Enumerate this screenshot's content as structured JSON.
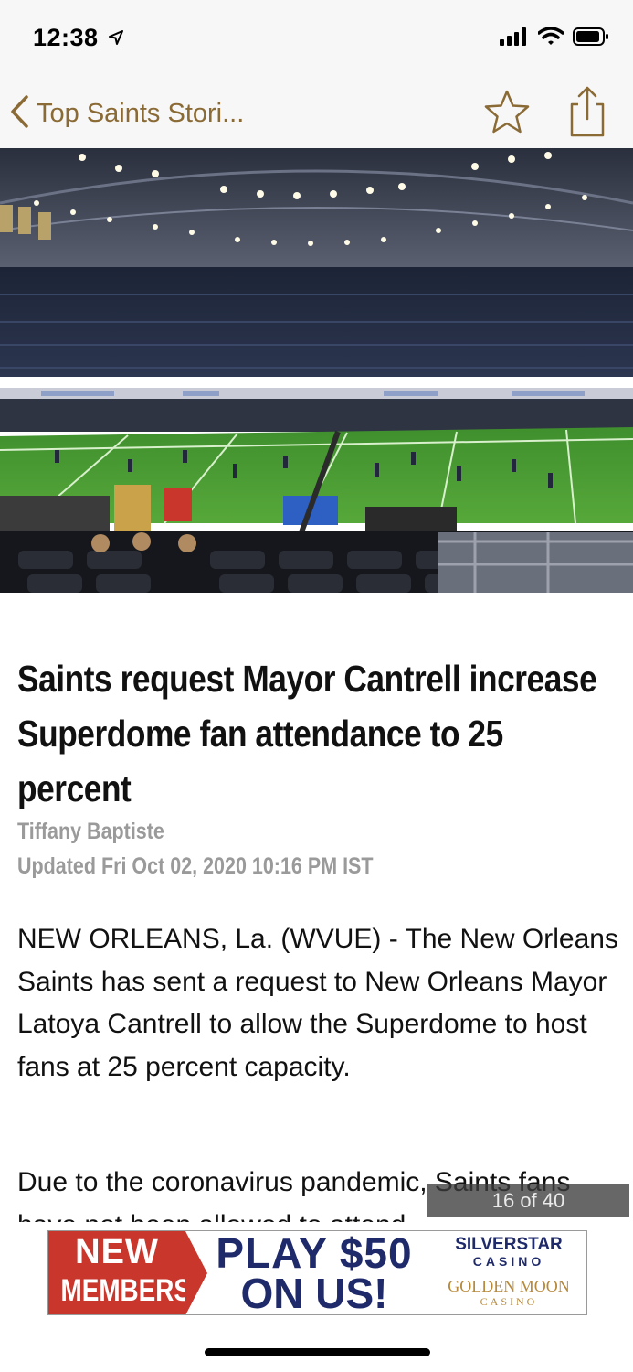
{
  "status_bar": {
    "time": "12:38",
    "icons": [
      "location-arrow-icon",
      "cellular-signal-icon",
      "wifi-icon",
      "battery-icon"
    ]
  },
  "nav": {
    "back_label": "Top Saints Stori...",
    "icons": [
      "chevron-left-icon",
      "star-icon",
      "share-icon"
    ],
    "accent_color": "#8a6a35"
  },
  "hero": {
    "icon": "stadium-photo"
  },
  "article": {
    "headline": "Saints request Mayor Cantrell increase Superdome fan attendance to 25 percent",
    "author": "Tiffany Baptiste",
    "updated": "Updated Fri Oct 02, 2020 10:16 PM IST",
    "paragraphs": [
      "NEW ORLEANS, La. (WVUE) - The New Orleans Saints has sent a request to New Orleans Mayor Latoya Cantrell to allow the Superdome to host fans at 25 percent capacity.",
      "Due to the coronavirus pandemic, Saints fans have not been allowed to attend"
    ]
  },
  "page_counter": "16 of 40",
  "ad": {
    "left_line1": "NEW",
    "left_line2": "MEMBERS",
    "middle_line1": "PLAY $50",
    "middle_line2": "ON US!",
    "brand1": "SILVERSTAR",
    "brand1_sub": "CASINO",
    "brand2": "GOLDEN MOON",
    "brand2_sub": "CASINO",
    "colors": {
      "red": "#c8362c",
      "navy": "#1f2a6b",
      "gold": "#b7893a"
    }
  }
}
